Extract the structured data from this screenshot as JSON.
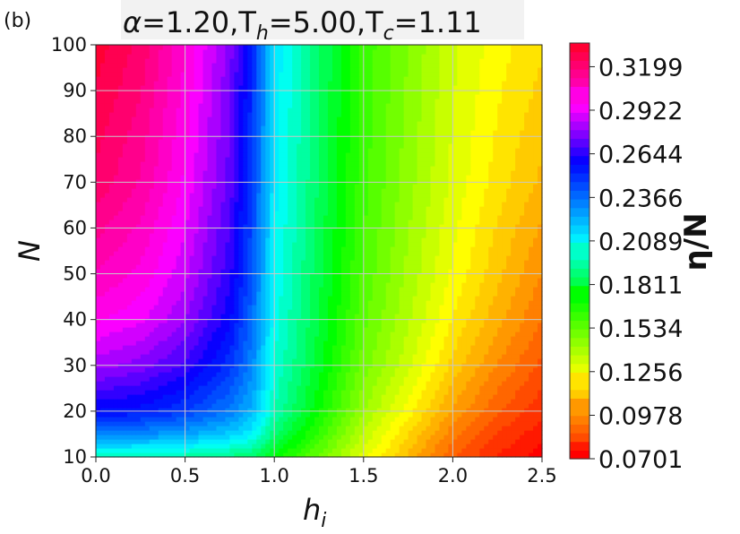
{
  "panel_label": "(b)",
  "chart_data": {
    "type": "heatmap",
    "title_parts": {
      "alpha": "α",
      "alpha_val": "=1.20,",
      "th": "T",
      "th_sub": "h",
      "th_val": "=5.00,",
      "tc": "T",
      "tc_sub": "c",
      "tc_val": "=1.11"
    },
    "xlabel": "h",
    "xlabel_sub": "i",
    "ylabel": "N",
    "colorbar_label": "η/N",
    "xlim": [
      0.0,
      2.5
    ],
    "ylim": [
      10,
      100
    ],
    "grid": true,
    "x_ticks": [
      "0.0",
      "0.5",
      "1.0",
      "1.5",
      "2.0",
      "2.5"
    ],
    "y_ticks": [
      "10",
      "20",
      "30",
      "40",
      "50",
      "60",
      "70",
      "80",
      "90",
      "100"
    ],
    "colorbar_ticks": [
      "0.0701",
      "0.0978",
      "0.1256",
      "0.1534",
      "0.1811",
      "0.2089",
      "0.2366",
      "0.2644",
      "0.2922",
      "0.3199"
    ],
    "colorbar_range": [
      0.0701,
      0.335
    ],
    "colormap": "gist_rainbow",
    "h": [
      0,
      0.25,
      0.5,
      0.75,
      0.875,
      1.0,
      1.25,
      1.5,
      1.75,
      2.0,
      2.25,
      2.5
    ],
    "N": [
      10,
      15,
      20,
      30,
      40,
      50,
      70,
      100
    ],
    "z": [
      [
        0.2,
        0.2,
        0.197,
        0.192,
        0.188,
        0.175,
        0.155,
        0.13,
        0.11,
        0.09,
        0.078,
        0.07
      ],
      [
        0.235,
        0.233,
        0.228,
        0.22,
        0.212,
        0.19,
        0.165,
        0.138,
        0.117,
        0.097,
        0.083,
        0.075
      ],
      [
        0.26,
        0.258,
        0.25,
        0.237,
        0.225,
        0.2,
        0.173,
        0.145,
        0.125,
        0.105,
        0.09,
        0.08
      ],
      [
        0.285,
        0.28,
        0.27,
        0.252,
        0.235,
        0.205,
        0.18,
        0.153,
        0.135,
        0.115,
        0.1,
        0.088
      ],
      [
        0.3,
        0.295,
        0.283,
        0.262,
        0.24,
        0.208,
        0.183,
        0.157,
        0.14,
        0.122,
        0.108,
        0.095
      ],
      [
        0.31,
        0.303,
        0.29,
        0.268,
        0.245,
        0.21,
        0.185,
        0.16,
        0.143,
        0.127,
        0.113,
        0.1
      ],
      [
        0.325,
        0.315,
        0.298,
        0.275,
        0.25,
        0.213,
        0.188,
        0.163,
        0.147,
        0.132,
        0.12,
        0.11
      ],
      [
        0.335,
        0.325,
        0.305,
        0.28,
        0.255,
        0.215,
        0.19,
        0.165,
        0.15,
        0.135,
        0.125,
        0.118
      ]
    ]
  }
}
